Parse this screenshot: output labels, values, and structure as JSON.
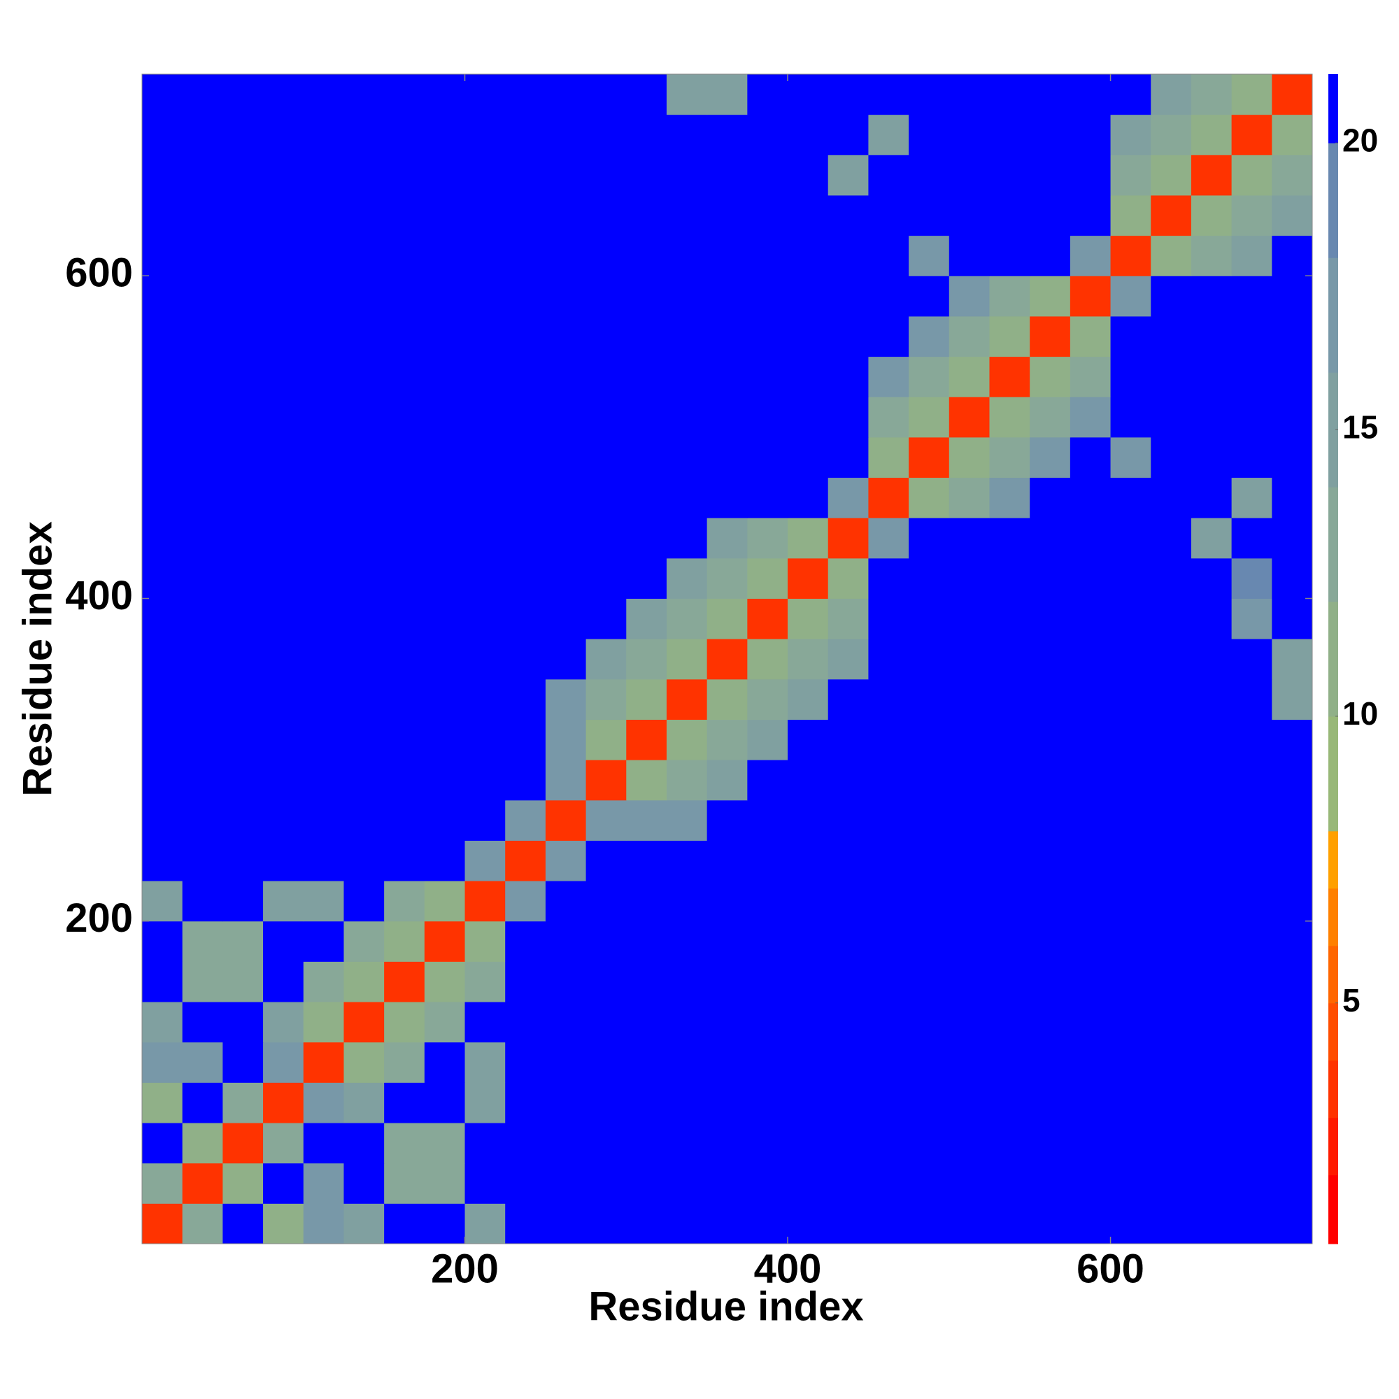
{
  "chart_data": {
    "type": "heatmap",
    "xlabel": "Residue index",
    "ylabel": "Residue index",
    "xlim": [
      0,
      725
    ],
    "ylim": [
      0,
      725
    ],
    "xticks": [
      200,
      400,
      600
    ],
    "yticks": [
      200,
      400,
      600
    ],
    "bins": [
      0,
      25,
      50,
      75,
      100,
      125,
      150,
      175,
      200,
      225,
      250,
      275,
      300,
      325,
      350,
      375,
      400,
      425,
      450,
      475,
      500,
      525,
      550,
      575,
      600,
      625,
      650,
      675,
      700,
      725
    ],
    "z": [
      [
        4,
        14,
        21,
        12,
        18,
        16,
        21,
        21,
        16,
        21,
        21,
        21,
        21,
        21,
        21,
        21,
        21,
        21,
        21,
        21,
        21,
        21,
        21,
        21,
        21,
        21,
        21,
        21,
        21
      ],
      [
        14,
        4,
        12,
        21,
        18,
        21,
        13,
        13,
        21,
        21,
        21,
        21,
        21,
        21,
        21,
        21,
        21,
        21,
        21,
        21,
        21,
        21,
        21,
        21,
        21,
        21,
        21,
        21,
        21
      ],
      [
        21,
        12,
        4,
        14,
        21,
        21,
        13,
        13,
        21,
        21,
        21,
        21,
        21,
        21,
        21,
        21,
        21,
        21,
        21,
        21,
        21,
        21,
        21,
        21,
        21,
        21,
        21,
        21,
        21
      ],
      [
        12,
        21,
        14,
        4,
        17,
        16,
        21,
        21,
        16,
        21,
        21,
        21,
        21,
        21,
        21,
        21,
        21,
        21,
        21,
        21,
        21,
        21,
        21,
        21,
        21,
        21,
        21,
        21,
        21
      ],
      [
        18,
        18,
        21,
        17,
        4,
        12,
        14,
        21,
        16,
        21,
        21,
        21,
        21,
        21,
        21,
        21,
        21,
        21,
        21,
        21,
        21,
        21,
        21,
        21,
        21,
        21,
        21,
        21,
        21
      ],
      [
        16,
        21,
        21,
        16,
        12,
        4,
        12,
        14,
        21,
        21,
        21,
        21,
        21,
        21,
        21,
        21,
        21,
        21,
        21,
        21,
        21,
        21,
        21,
        21,
        21,
        21,
        21,
        21,
        21
      ],
      [
        21,
        13,
        13,
        21,
        14,
        12,
        4,
        12,
        14,
        21,
        21,
        21,
        21,
        21,
        21,
        21,
        21,
        21,
        21,
        21,
        21,
        21,
        21,
        21,
        21,
        21,
        21,
        21,
        21
      ],
      [
        21,
        13,
        13,
        21,
        21,
        14,
        12,
        4,
        12,
        21,
        21,
        21,
        21,
        21,
        21,
        21,
        21,
        21,
        21,
        21,
        21,
        21,
        21,
        21,
        21,
        21,
        21,
        21,
        21
      ],
      [
        16,
        21,
        21,
        16,
        16,
        21,
        14,
        12,
        4,
        17,
        21,
        21,
        21,
        21,
        21,
        21,
        21,
        21,
        21,
        21,
        21,
        21,
        21,
        21,
        21,
        21,
        21,
        21,
        21
      ],
      [
        21,
        21,
        21,
        21,
        21,
        21,
        21,
        21,
        17,
        4,
        17,
        21,
        21,
        21,
        21,
        21,
        21,
        21,
        21,
        21,
        21,
        21,
        21,
        21,
        21,
        21,
        21,
        21,
        21
      ],
      [
        21,
        21,
        21,
        21,
        21,
        21,
        21,
        21,
        21,
        17,
        4,
        17,
        18,
        18,
        21,
        21,
        21,
        21,
        21,
        21,
        21,
        21,
        21,
        21,
        21,
        21,
        21,
        21,
        21
      ],
      [
        21,
        21,
        21,
        21,
        21,
        21,
        21,
        21,
        21,
        21,
        17,
        4,
        12,
        14,
        16,
        21,
        21,
        21,
        21,
        21,
        21,
        21,
        21,
        21,
        21,
        21,
        21,
        21,
        21
      ],
      [
        21,
        21,
        21,
        21,
        21,
        21,
        21,
        21,
        21,
        21,
        18,
        12,
        4,
        12,
        14,
        16,
        21,
        21,
        21,
        21,
        21,
        21,
        21,
        21,
        21,
        21,
        21,
        21,
        21
      ],
      [
        21,
        21,
        21,
        21,
        21,
        21,
        21,
        21,
        21,
        21,
        18,
        14,
        12,
        4,
        12,
        14,
        16,
        21,
        21,
        21,
        21,
        21,
        21,
        21,
        21,
        21,
        21,
        21,
        15
      ],
      [
        21,
        21,
        21,
        21,
        21,
        21,
        21,
        21,
        21,
        21,
        21,
        16,
        14,
        12,
        4,
        12,
        14,
        16,
        21,
        21,
        21,
        21,
        21,
        21,
        21,
        21,
        21,
        21,
        15
      ],
      [
        21,
        21,
        21,
        21,
        21,
        21,
        21,
        21,
        21,
        21,
        21,
        21,
        16,
        14,
        12,
        4,
        12,
        14,
        21,
        21,
        21,
        21,
        21,
        21,
        21,
        21,
        21,
        18,
        21
      ],
      [
        21,
        21,
        21,
        21,
        21,
        21,
        21,
        21,
        21,
        21,
        21,
        21,
        21,
        16,
        14,
        12,
        4,
        12,
        21,
        21,
        21,
        21,
        21,
        21,
        21,
        21,
        21,
        19,
        21
      ],
      [
        21,
        21,
        21,
        21,
        21,
        21,
        21,
        21,
        21,
        21,
        21,
        21,
        21,
        21,
        16,
        14,
        12,
        4,
        17,
        21,
        21,
        21,
        21,
        21,
        21,
        21,
        15,
        21,
        21
      ],
      [
        21,
        21,
        21,
        21,
        21,
        21,
        21,
        21,
        21,
        21,
        21,
        21,
        21,
        21,
        21,
        21,
        21,
        17,
        4,
        12,
        14,
        17,
        21,
        21,
        21,
        21,
        21,
        16,
        21
      ],
      [
        21,
        21,
        21,
        21,
        21,
        21,
        21,
        21,
        21,
        21,
        21,
        21,
        21,
        21,
        21,
        21,
        21,
        21,
        12,
        4,
        12,
        14,
        17,
        21,
        17,
        21,
        21,
        21,
        21
      ],
      [
        21,
        21,
        21,
        21,
        21,
        21,
        21,
        21,
        21,
        21,
        21,
        21,
        21,
        21,
        21,
        21,
        21,
        21,
        14,
        12,
        4,
        12,
        14,
        17,
        21,
        21,
        21,
        21,
        21
      ],
      [
        21,
        21,
        21,
        21,
        21,
        21,
        21,
        21,
        21,
        21,
        21,
        21,
        21,
        21,
        21,
        21,
        21,
        21,
        17,
        14,
        12,
        4,
        12,
        14,
        21,
        21,
        21,
        21,
        21
      ],
      [
        21,
        21,
        21,
        21,
        21,
        21,
        21,
        21,
        21,
        21,
        21,
        21,
        21,
        21,
        21,
        21,
        21,
        21,
        21,
        17,
        14,
        12,
        4,
        12,
        21,
        21,
        21,
        21,
        21
      ],
      [
        21,
        21,
        21,
        21,
        21,
        21,
        21,
        21,
        21,
        21,
        21,
        21,
        21,
        21,
        21,
        21,
        21,
        21,
        21,
        21,
        17,
        14,
        12,
        4,
        17,
        21,
        21,
        21,
        21
      ],
      [
        21,
        21,
        21,
        21,
        21,
        21,
        21,
        21,
        21,
        21,
        21,
        21,
        21,
        21,
        21,
        21,
        21,
        21,
        21,
        17,
        21,
        21,
        21,
        17,
        4,
        11,
        13,
        16,
        21
      ],
      [
        21,
        21,
        21,
        21,
        21,
        21,
        21,
        21,
        21,
        21,
        21,
        21,
        21,
        21,
        21,
        21,
        21,
        21,
        21,
        21,
        21,
        21,
        21,
        21,
        11,
        4,
        11,
        13,
        16
      ],
      [
        21,
        21,
        21,
        21,
        21,
        21,
        21,
        21,
        21,
        21,
        21,
        21,
        21,
        21,
        21,
        21,
        21,
        15,
        21,
        21,
        21,
        21,
        21,
        21,
        13,
        11,
        4,
        11,
        13
      ],
      [
        21,
        21,
        21,
        21,
        21,
        21,
        21,
        21,
        21,
        21,
        21,
        21,
        21,
        21,
        21,
        21,
        21,
        21,
        16,
        21,
        21,
        21,
        21,
        21,
        16,
        13,
        11,
        4,
        11
      ],
      [
        21,
        21,
        21,
        21,
        21,
        21,
        21,
        21,
        21,
        21,
        21,
        21,
        21,
        15,
        15,
        21,
        21,
        21,
        21,
        21,
        21,
        21,
        21,
        21,
        21,
        16,
        13,
        11,
        4
      ]
    ],
    "clim": [
      0.8,
      21.2
    ],
    "cticks": [
      5,
      10,
      15,
      20
    ],
    "levels": [
      0.8,
      2,
      3,
      4,
      5,
      6,
      7,
      8,
      10,
      12,
      14,
      16,
      18,
      20,
      21.2
    ],
    "colors": [
      "#ff0000",
      "#ff1a00",
      "#ff3300",
      "#ff4d00",
      "#ff6600",
      "#ff8000",
      "#ffa000",
      "#98b878",
      "#90b088",
      "#88a898",
      "#80a0a0",
      "#7898a8",
      "#6888b0",
      "#0000ff"
    ]
  }
}
